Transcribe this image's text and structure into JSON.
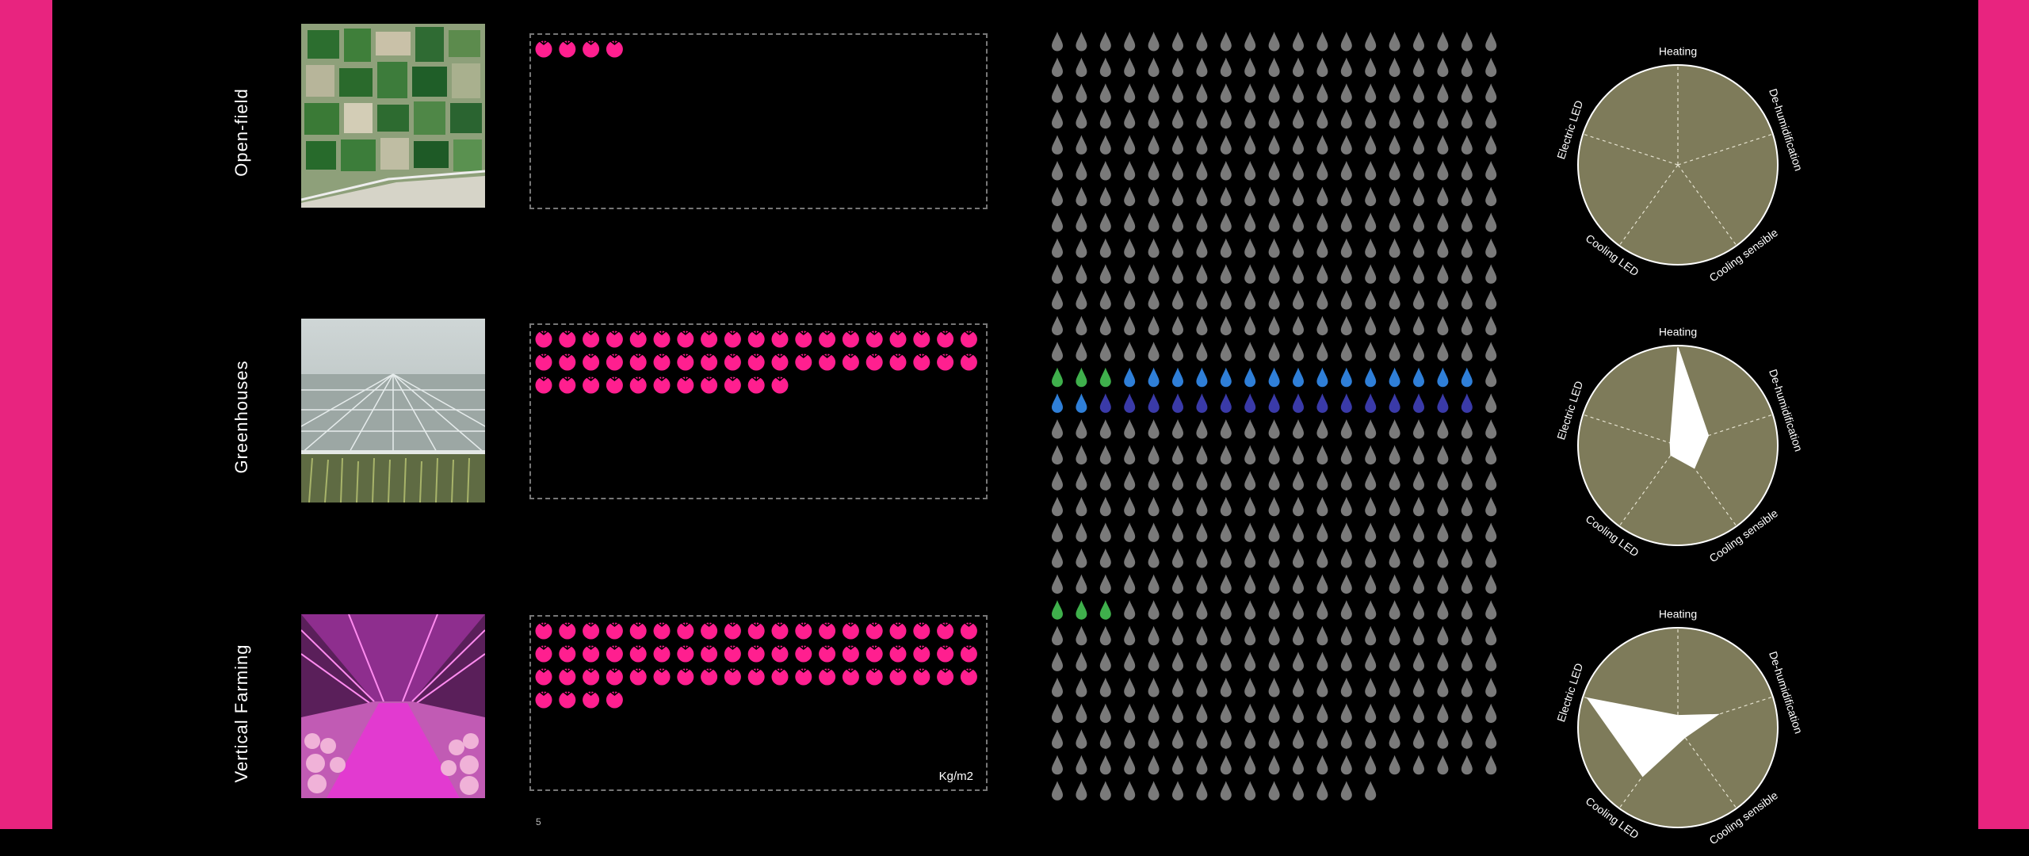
{
  "colors": {
    "side_bar": "#e8247f",
    "tomato": "#ff1f8f",
    "drop_default": "#7a7a7a",
    "drop_green": "#3fb04c",
    "drop_blue": "#2f7fd8",
    "drop_indigo": "#3a3aa8",
    "radar_fill": "#7e7b5a",
    "radar_shape": "#ffffff"
  },
  "rows": [
    {
      "label": "Open-field",
      "image": "aerial-farmland-photo"
    },
    {
      "label": "Greenhouses",
      "image": "greenhouse-photo"
    },
    {
      "label": "Vertical Farming",
      "image": "vertical-farm-photo"
    }
  ],
  "yield_unit": "Kg/m2",
  "stray_mark": "5",
  "chart_data": [
    {
      "type": "icon-count",
      "metric": "yield",
      "unit": "Kg/m2",
      "icon": "tomato-icon",
      "per_row": 19,
      "categories": [
        "Open-field",
        "Greenhouses",
        "Vertical Farming"
      ],
      "values": [
        4,
        49,
        61
      ]
    },
    {
      "type": "icon-grid",
      "metric": "water",
      "icon": "droplet-icon",
      "columns": 19,
      "rows": 30,
      "total": 565,
      "highlights": [
        {
          "row": 13,
          "segments": [
            {
              "color": "green",
              "count": 3
            },
            {
              "color": "blue",
              "count": 15
            }
          ]
        },
        {
          "row": 14,
          "segments": [
            {
              "color": "blue",
              "count": 2
            },
            {
              "color": "indigo",
              "count": 16
            }
          ]
        },
        {
          "row": 22,
          "segments": [
            {
              "color": "green",
              "count": 3
            }
          ]
        }
      ]
    },
    {
      "type": "radar",
      "axes": [
        "Heating",
        "De-humidification",
        "Cooling sensible",
        "Cooling LED",
        "Electric LED"
      ],
      "series": [
        {
          "category": "Open-field",
          "values": [
            0,
            0,
            0,
            0,
            0
          ]
        },
        {
          "category": "Greenhouses",
          "values": [
            0.98,
            0.32,
            0.28,
            0.12,
            0.08
          ]
        },
        {
          "category": "Vertical Farming",
          "values": [
            0.12,
            0.42,
            0.12,
            0.6,
            0.95
          ]
        }
      ]
    }
  ]
}
